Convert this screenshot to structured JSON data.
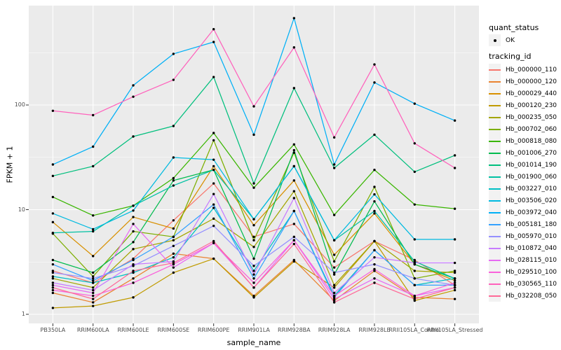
{
  "figure": {
    "background": "#FFFFFF",
    "panel_background": "#EBEBEB",
    "grid_color": "#FFFFFF",
    "tick_color": "#333333",
    "axis_text_color": "#4D4D4D"
  },
  "chart_data": {
    "type": "line",
    "title": "",
    "x_axis_label": "sample_name",
    "y_axis_label": "FPKM + 1",
    "y_scale": "log10",
    "y_major_ticks": [
      1,
      10,
      100
    ],
    "y_minor_ticks": [
      3.162,
      31.623,
      316.228
    ],
    "ylim": [
      0.85,
      900
    ],
    "grid": true,
    "point_color": "#000000",
    "categories": [
      "PB350LA",
      "RRIM600LA",
      "RRIM600LE",
      "RRIM600SE",
      "RRIM600PE",
      "RRIM901LA",
      "RRIM928BA",
      "RRIM928LA",
      "RRIM928LE",
      "RRII105LA_Control",
      "RRII105LA_Stressed"
    ],
    "legend": {
      "position": "right",
      "groups": [
        {
          "title": "quant_status",
          "items": [
            {
              "label": "OK",
              "marker": "point",
              "color": "#000000"
            }
          ]
        },
        {
          "title": "tracking_id",
          "marker": "line",
          "items_from_series": true
        }
      ]
    },
    "series": [
      {
        "name": "Hb_000000_110",
        "color": "#F8766D",
        "values": [
          2.6,
          2.0,
          3.4,
          7.9,
          17.8,
          5.5,
          7.3,
          2.8,
          5.0,
          3.3,
          1.9
        ]
      },
      {
        "name": "Hb_000000_120",
        "color": "#EA8331",
        "values": [
          1.6,
          1.3,
          2.2,
          3.8,
          3.4,
          1.5,
          3.3,
          1.35,
          2.6,
          1.45,
          1.4
        ]
      },
      {
        "name": "Hb_000029_440",
        "color": "#D89000",
        "values": [
          7.6,
          3.6,
          8.5,
          6.6,
          26,
          7.1,
          19,
          3.7,
          9.2,
          3.0,
          2.1
        ]
      },
      {
        "name": "Hb_000120_230",
        "color": "#C09B00",
        "values": [
          1.15,
          1.2,
          1.45,
          2.5,
          3.4,
          1.45,
          3.2,
          1.8,
          5.0,
          1.35,
          1.7
        ]
      },
      {
        "name": "Hb_000235_050",
        "color": "#A3A500",
        "values": [
          2.2,
          1.8,
          4.2,
          5.1,
          8.2,
          4.4,
          15,
          1.9,
          5.0,
          2.6,
          2.5
        ]
      },
      {
        "name": "Hb_000702_060",
        "color": "#7CAE00",
        "values": [
          5.9,
          2.3,
          6.2,
          5.5,
          46,
          5.1,
          35,
          3.2,
          16.5,
          2.2,
          2.6
        ]
      },
      {
        "name": "Hb_000818_080",
        "color": "#39B600",
        "values": [
          13.2,
          8.8,
          10.9,
          20,
          54,
          16.2,
          42,
          8.9,
          24,
          11.2,
          10.2
        ]
      },
      {
        "name": "Hb_001006_270",
        "color": "#00BB4E",
        "values": [
          3.3,
          2.5,
          4.9,
          19,
          24,
          3.4,
          37,
          2.4,
          12,
          3.0,
          2.2
        ]
      },
      {
        "name": "Hb_001014_190",
        "color": "#00BF7D",
        "values": [
          21,
          26,
          50,
          63,
          185,
          17.8,
          145,
          25,
          52,
          23,
          33
        ]
      },
      {
        "name": "Hb_001900_060",
        "color": "#00C1A3",
        "values": [
          6.0,
          6.2,
          10.9,
          17,
          24,
          8.1,
          26,
          5.1,
          9.7,
          3.2,
          2.2
        ]
      },
      {
        "name": "Hb_003227_010",
        "color": "#00BFC4",
        "values": [
          2.3,
          2.0,
          2.5,
          3.5,
          10.4,
          2.6,
          9.7,
          1.5,
          4.1,
          1.9,
          2.2
        ]
      },
      {
        "name": "Hb_003506_020",
        "color": "#00BAE0",
        "values": [
          9.2,
          6.5,
          9.8,
          31.5,
          30,
          8.1,
          26,
          5.1,
          14,
          5.2,
          5.2
        ]
      },
      {
        "name": "Hb_003972_040",
        "color": "#00B0F6",
        "values": [
          27,
          40,
          154,
          308,
          400,
          52,
          676,
          27,
          164,
          103,
          71
        ]
      },
      {
        "name": "Hb_005181_180",
        "color": "#35A2FF",
        "values": [
          3.0,
          2.1,
          3.3,
          5.5,
          11.2,
          2.2,
          9.7,
          1.45,
          4.1,
          1.9,
          1.9
        ]
      },
      {
        "name": "Hb_005970_010",
        "color": "#9590FF",
        "values": [
          2.5,
          2.2,
          2.9,
          4.5,
          7.0,
          2.9,
          5.5,
          2.5,
          3.0,
          2.2,
          1.9
        ]
      },
      {
        "name": "Hb_010872_040",
        "color": "#C77CFF",
        "values": [
          2.0,
          1.7,
          3.0,
          3.2,
          14.1,
          2.4,
          12.9,
          1.6,
          3.5,
          3.1,
          3.1
        ]
      },
      {
        "name": "Hb_028115_010",
        "color": "#E76BF3",
        "values": [
          1.9,
          1.6,
          7.3,
          2.8,
          4.8,
          1.8,
          5.1,
          1.4,
          2.2,
          1.5,
          1.8
        ]
      },
      {
        "name": "Hb_029510_100",
        "color": "#FA62DB",
        "values": [
          1.7,
          1.5,
          2.0,
          3.0,
          4.8,
          2.0,
          5.1,
          1.5,
          2.7,
          1.5,
          2.0
        ]
      },
      {
        "name": "Hb_030565_110",
        "color": "#FF62BC",
        "values": [
          88,
          80,
          120,
          174,
          530,
          97,
          355,
          49,
          244,
          43,
          25
        ]
      },
      {
        "name": "Hb_032208_050",
        "color": "#FF6A98",
        "values": [
          1.8,
          1.4,
          2.6,
          3.1,
          5.0,
          1.8,
          4.7,
          1.3,
          2.0,
          1.4,
          1.8
        ]
      }
    ]
  }
}
